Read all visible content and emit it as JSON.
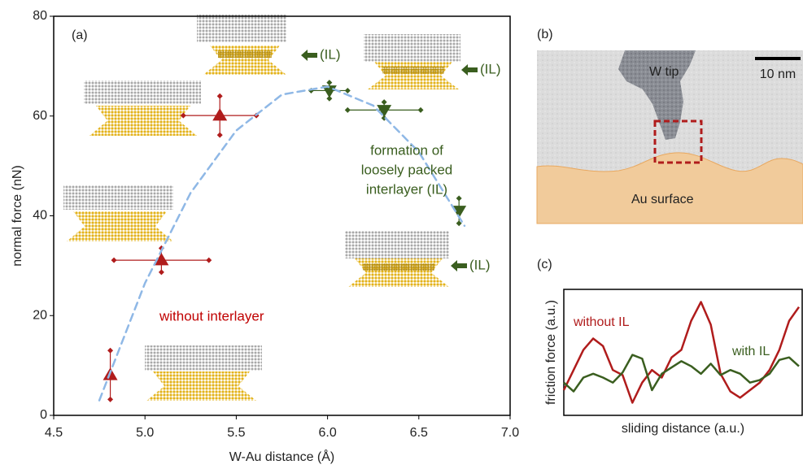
{
  "chart_data": [
    {
      "type": "scatter",
      "label": "(a)",
      "xlabel": "W-Au distance (Å)",
      "ylabel": "normal force (nN)",
      "xlim": [
        4.5,
        7.0
      ],
      "ylim": [
        0,
        80
      ],
      "xticks": [
        4.5,
        {
          "value": 5,
          "label": "5.0"
        },
        5.5,
        {
          "value": 6,
          "label": "6.0"
        },
        6.5,
        {
          "value": 7,
          "label": "7.0"
        }
      ],
      "yticks": [
        0,
        20,
        40,
        60,
        80
      ],
      "series": [
        {
          "color": "#b01c1c",
          "marker": "triangle-up",
          "x": [
            4.81,
            5.09,
            5.41
          ],
          "values": [
            8.1,
            31.1,
            60.1
          ],
          "xerr": [
            0,
            0.26,
            0.2
          ],
          "yerr": [
            4.9,
            2.4,
            3.9
          ]
        },
        {
          "color": "#3a5e1f",
          "marker": "triangle-down",
          "x": [
            6.01,
            6.31,
            6.72
          ],
          "values": [
            65.1,
            61.2,
            41.0
          ],
          "xerr": [
            0.1,
            0.2,
            0
          ],
          "yerr": [
            1.6,
            1.6,
            2.5
          ]
        },
        {
          "type": "line",
          "color": "#8fb8e6",
          "dashed": true,
          "x": [
            4.75,
            5.0,
            5.25,
            5.5,
            5.75,
            6.0,
            6.25,
            6.5,
            6.75
          ],
          "values": [
            3,
            26.5,
            44.6,
            57.1,
            64.3,
            65.9,
            62.1,
            52.8,
            38
          ]
        }
      ],
      "annotations": [
        {
          "lines": [
            "without interlayer"
          ],
          "color": "#c00000"
        },
        {
          "lines": [
            "formation of",
            "loosely packed",
            "interlayer (IL)"
          ],
          "color": "#3a5e1f"
        },
        {
          "lines": [
            "(IL)"
          ],
          "color": "#3a5e1f"
        },
        {
          "lines": [
            "(IL)"
          ],
          "color": "#3a5e1f"
        },
        {
          "lines": [
            "(IL)"
          ],
          "color": "#3a5e1f"
        }
      ]
    },
    {
      "type": "line",
      "label": "(c)",
      "xlabel": "sliding distance (a.u.)",
      "ylabel": "friction force (a.u.)",
      "ylim": [
        0,
        10
      ],
      "series": [
        {
          "name": "without IL",
          "color": "#b01c1c",
          "values": [
            2.0,
            3.6,
            5.2,
            6.1,
            5.5,
            3.6,
            3.2,
            1.0,
            2.6,
            3.6,
            3.0,
            4.6,
            5.2,
            7.5,
            9.0,
            7.2,
            3.3,
            1.9,
            1.4,
            2.0,
            2.6,
            3.6,
            5.2,
            7.5,
            8.6
          ]
        },
        {
          "name": "with IL",
          "color": "#3a5e1f",
          "values": [
            2.6,
            1.9,
            3.0,
            3.3,
            3.0,
            2.6,
            3.4,
            4.8,
            4.5,
            2.0,
            3.3,
            3.8,
            4.3,
            3.9,
            3.3,
            4.1,
            3.2,
            3.6,
            3.3,
            2.6,
            2.8,
            3.3,
            4.4,
            4.6,
            3.9
          ]
        }
      ]
    }
  ],
  "image": {
    "label": "(b)",
    "tip": "W tip",
    "scale": "10 nm",
    "surface": "Au surface"
  }
}
